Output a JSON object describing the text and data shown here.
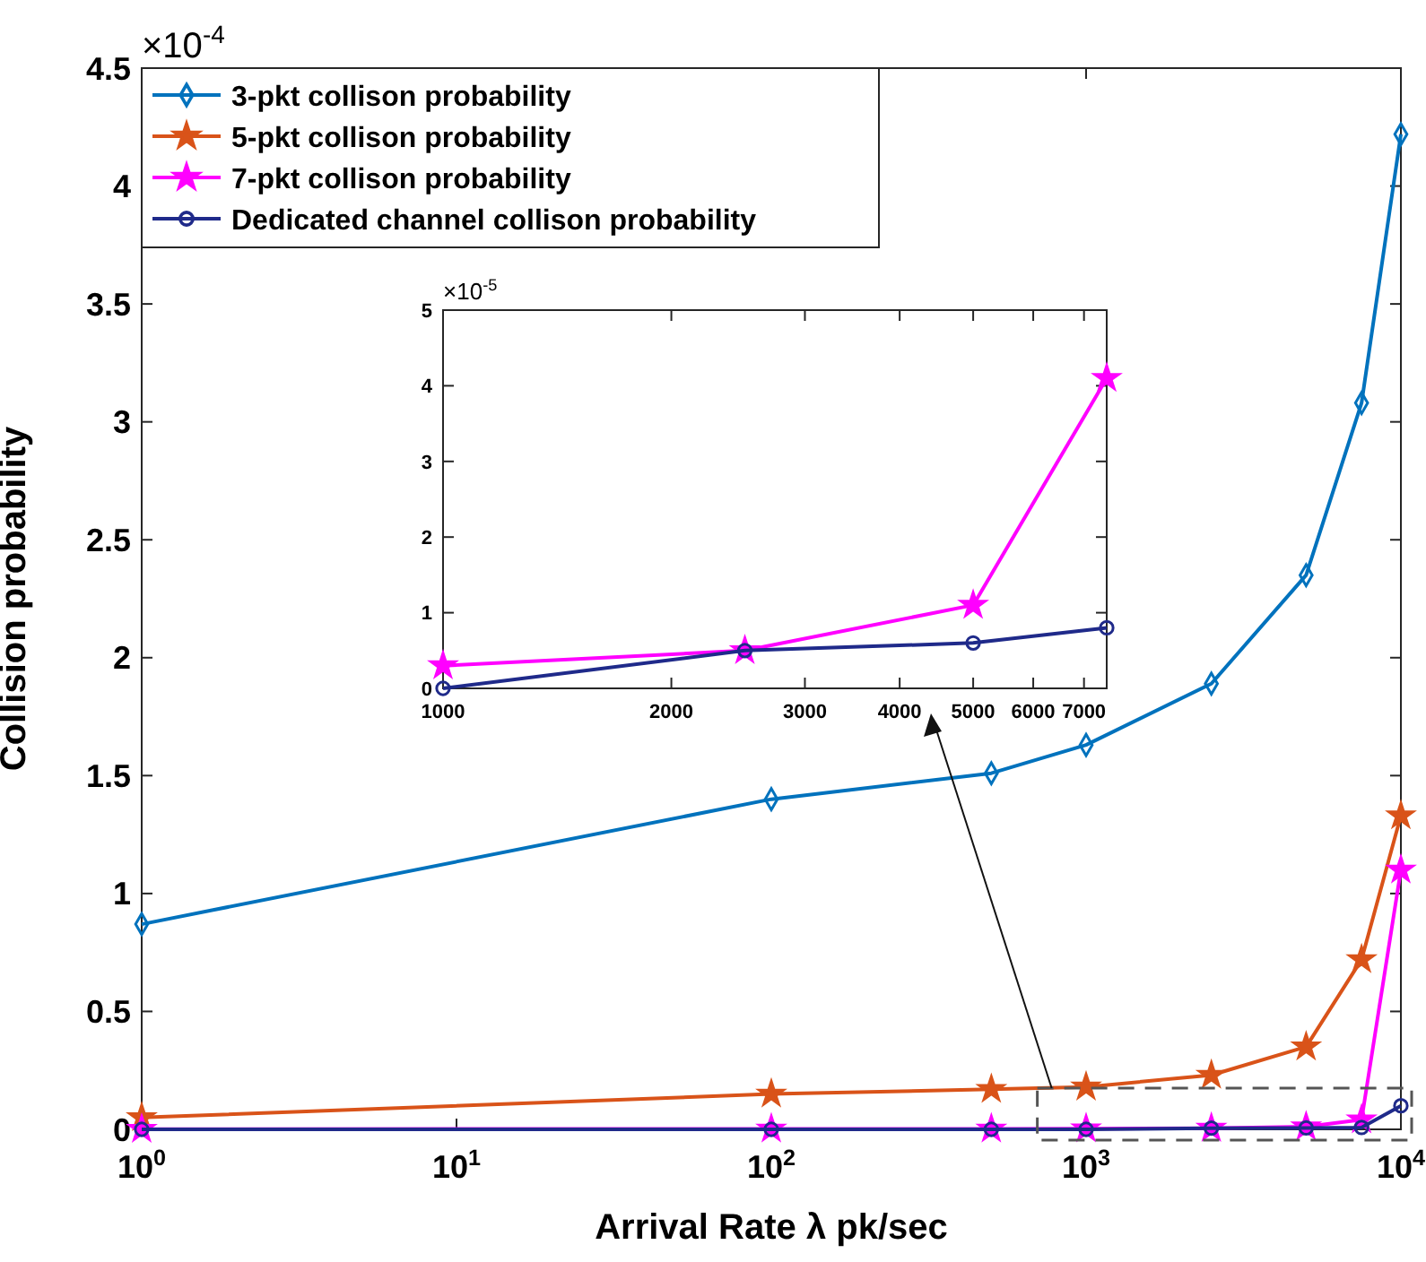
{
  "chart_data": [
    {
      "type": "line",
      "xlabel": "Arrival Rate λ pk/sec",
      "ylabel": "Collision probability",
      "log": "x",
      "x": [
        1,
        100,
        500,
        1000,
        2500,
        5000,
        7500,
        10000
      ],
      "series": [
        {
          "name": "3-pkt collison probability",
          "color": "#0072bd",
          "marker": "diamond",
          "values": [
            0.87,
            1.4,
            1.51,
            1.63,
            1.89,
            2.35,
            3.08,
            4.22
          ]
        },
        {
          "name": "5-pkt collison probability",
          "color": "#d95319",
          "marker": "star",
          "values": [
            0.05,
            0.15,
            0.17,
            0.18,
            0.23,
            0.35,
            0.72,
            1.33
          ]
        },
        {
          "name": "7-pkt collison probability",
          "color": "#ff00ff",
          "marker": "star",
          "values": [
            0.001,
            0.002,
            0.002,
            0.003,
            0.005,
            0.011,
            0.041,
            1.1
          ]
        },
        {
          "name": "Dedicated channel collison probability",
          "color": "#1f2a8a",
          "marker": "circle",
          "values": [
            0,
            0,
            0,
            0,
            0.005,
            0.006,
            0.008,
            0.1
          ]
        }
      ],
      "xlim": [
        1,
        10000
      ],
      "xticks": [
        {
          "value": 1,
          "label": "10$^{0}$"
        },
        {
          "value": 10,
          "label": "10$^{1}$"
        },
        {
          "value": 100,
          "label": "10$^{2}$"
        },
        {
          "value": 1000,
          "label": "10$^{3}$"
        },
        {
          "value": 10000,
          "label": "10$^{4}$"
        }
      ],
      "ylim": [
        0,
        4.5
      ],
      "yticks": [
        0,
        0.5,
        1,
        1.5,
        2,
        2.5,
        3,
        3.5,
        4,
        4.5
      ],
      "legend": "top left",
      "grid": false,
      "line_style": "solid",
      "annotations": [
        "×10$^{-4}$"
      ]
    },
    {
      "type": "line",
      "log": "x",
      "x": [
        1000,
        2500,
        5000,
        7500
      ],
      "series": [
        {
          "color": "#ff00ff",
          "marker": "star",
          "values": [
            0.3,
            0.5,
            1.1,
            4.1
          ]
        },
        {
          "color": "#1f2a8a",
          "marker": "circle",
          "values": [
            0,
            0.5,
            0.6,
            0.8
          ]
        }
      ],
      "xlim": [
        1000,
        7500
      ],
      "xticks": [
        1000,
        2000,
        3000,
        4000,
        5000,
        6000,
        7000
      ],
      "ylim": [
        0,
        5
      ],
      "yticks": [
        0,
        1,
        2,
        3,
        4,
        5
      ],
      "legend": false,
      "grid": false,
      "line_style": "solid",
      "annotations": [
        "×10$^{-5}$"
      ]
    }
  ]
}
